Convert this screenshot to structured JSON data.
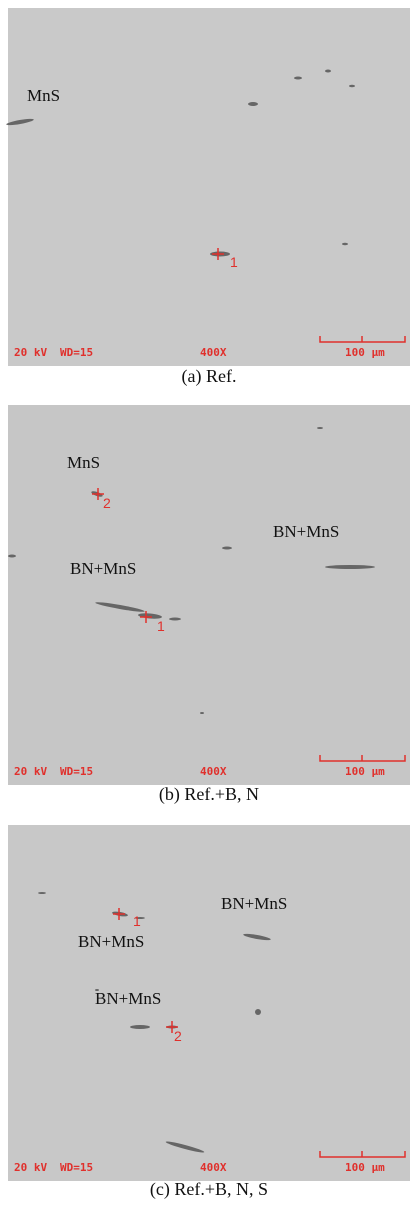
{
  "panels": [
    {
      "caption": "(a) Ref.",
      "annotations": [
        "MnS"
      ],
      "points": [
        "1"
      ],
      "info": {
        "voltage": "20 kV",
        "wd": "WD=15",
        "magnification": "400X",
        "scale": "100 µm"
      }
    },
    {
      "caption": "(b) Ref.+B, N",
      "annotations": [
        "MnS",
        "BN+MnS",
        "BN+MnS"
      ],
      "points": [
        "2",
        "1"
      ],
      "info": {
        "voltage": "20 kV",
        "wd": "WD=15",
        "magnification": "400X",
        "scale": "100 µm"
      }
    },
    {
      "caption": "(c) Ref.+B, N, S",
      "annotations": [
        "BN+MnS",
        "BN+MnS",
        "BN+MnS"
      ],
      "points": [
        "1",
        "2"
      ],
      "info": {
        "voltage": "20 kV",
        "wd": "WD=15",
        "magnification": "400X",
        "scale": "100 µm"
      }
    }
  ]
}
